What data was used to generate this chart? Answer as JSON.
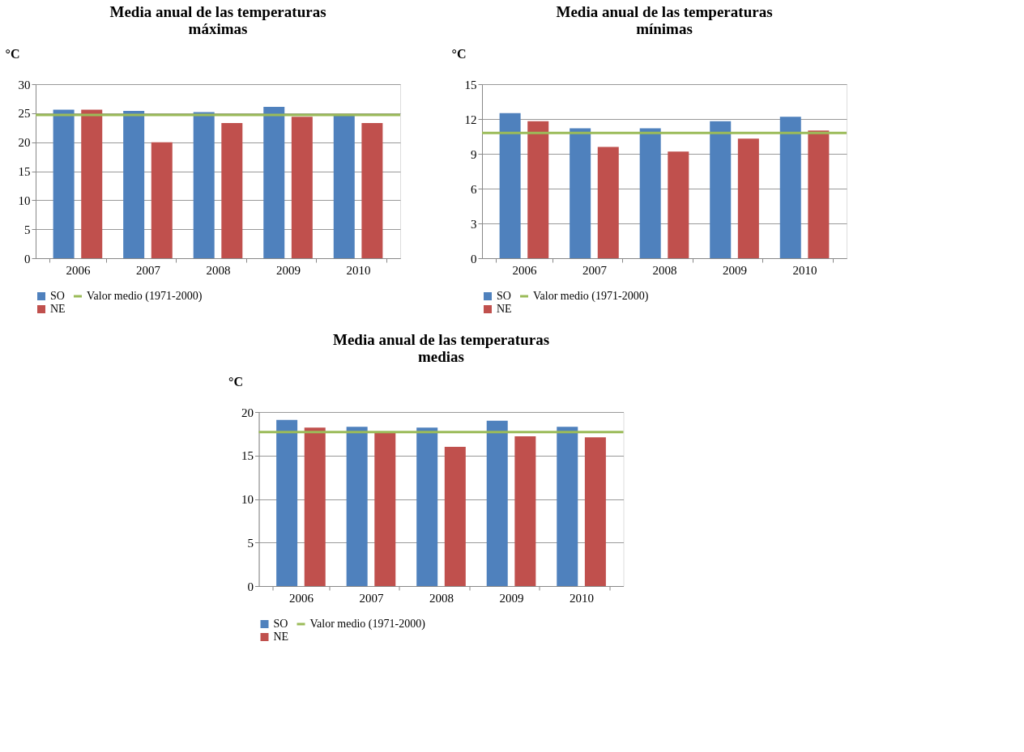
{
  "chart_data": [
    {
      "type": "bar",
      "title": "Media anual de las temperaturas máximas",
      "ylabel": "°C",
      "categories": [
        "2006",
        "2007",
        "2008",
        "2009",
        "2010"
      ],
      "series": [
        {
          "name": "SO",
          "color": "#4f81bd",
          "values": [
            25.6,
            25.4,
            25.2,
            26.1,
            24.7
          ]
        },
        {
          "name": "NE",
          "color": "#c0504d",
          "values": [
            25.6,
            20.0,
            23.3,
            24.4,
            23.3
          ]
        }
      ],
      "ref_lines": [
        {
          "axis": "y",
          "value": 24.7,
          "label": "Valor medio (1971-2000)",
          "color": "#9bbb59"
        }
      ],
      "ylim": [
        0,
        30
      ],
      "yticks": [
        0,
        5,
        10,
        15,
        20,
        25,
        30
      ],
      "grid": "y",
      "legend": "bottom"
    },
    {
      "type": "bar",
      "title": "Media anual de las temperaturas mínimas",
      "ylabel": "°C",
      "categories": [
        "2006",
        "2007",
        "2008",
        "2009",
        "2010"
      ],
      "series": [
        {
          "name": "SO",
          "color": "#4f81bd",
          "values": [
            12.5,
            11.2,
            11.2,
            11.8,
            12.2
          ]
        },
        {
          "name": "NE",
          "color": "#c0504d",
          "values": [
            11.8,
            9.6,
            9.2,
            10.3,
            11.0
          ]
        }
      ],
      "ref_lines": [
        {
          "axis": "y",
          "value": 10.8,
          "label": "Valor medio (1971-2000)",
          "color": "#9bbb59"
        }
      ],
      "ylim": [
        0,
        15
      ],
      "yticks": [
        0,
        3,
        6,
        9,
        12,
        15
      ],
      "grid": "y",
      "legend": "bottom"
    },
    {
      "type": "bar",
      "title": "Media anual de las temperaturas medias",
      "ylabel": "°C",
      "categories": [
        "2006",
        "2007",
        "2008",
        "2009",
        "2010"
      ],
      "series": [
        {
          "name": "SO",
          "color": "#4f81bd",
          "values": [
            19.1,
            18.3,
            18.2,
            19.0,
            18.3
          ]
        },
        {
          "name": "NE",
          "color": "#c0504d",
          "values": [
            18.2,
            17.6,
            16.0,
            17.2,
            17.1
          ]
        }
      ],
      "ref_lines": [
        {
          "axis": "y",
          "value": 17.7,
          "label": "Valor medio (1971-2000)",
          "color": "#9bbb59"
        }
      ],
      "ylim": [
        0,
        20
      ],
      "yticks": [
        0,
        5,
        10,
        15,
        20
      ],
      "grid": "y",
      "legend": "bottom"
    }
  ]
}
